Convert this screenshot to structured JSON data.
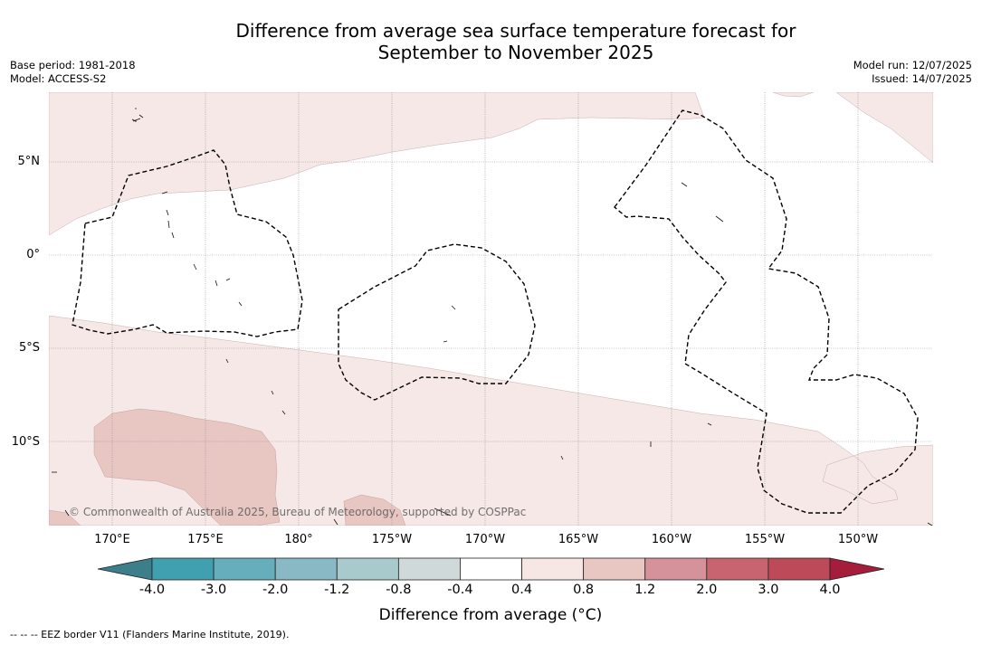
{
  "title_line1": "Difference from average sea surface temperature forecast for",
  "title_line2": "September to November 2025",
  "base_period": "Base period: 1981-2018",
  "model": "Model: ACCESS-S2",
  "model_run": "Model run: 12/07/2025",
  "issued": "Issued: 14/07/2025",
  "lat_labels": [
    "5°N",
    "0°",
    "5°S",
    "10°S"
  ],
  "lon_labels": [
    "170°E",
    "175°E",
    "180°",
    "175°W",
    "170°W",
    "165°W",
    "160°W",
    "155°W",
    "150°W"
  ],
  "copyright": "© Commonwealth of Australia 2025, Bureau of Meteorology, supported by COSPPac",
  "colorbar": {
    "title": "Difference from average (°C)",
    "ticks": [
      "-4.0",
      "-3.0",
      "-2.0",
      "-1.2",
      "-0.8",
      "-0.4",
      "0.4",
      "0.8",
      "1.2",
      "2.0",
      "3.0",
      "4.0"
    ],
    "colors": [
      "#41a0b0",
      "#66aebb",
      "#89b9c4",
      "#a9cacd",
      "#cfd9da",
      "#ffffff",
      "#f6e7e5",
      "#e8c6c2",
      "#d6929a",
      "#c76470",
      "#bc4a58"
    ],
    "under_color": "#3c7f8a",
    "over_color": "#a51d3b"
  },
  "footnote": "--  --  -- EEZ border V11 (Flanders Marine Institute, 2019).",
  "map_colors": {
    "anomaly_light": "#f5e8e6",
    "anomaly_medium": "#e8c6c2",
    "grid": "#8c8c8c",
    "land": "#222222"
  }
}
